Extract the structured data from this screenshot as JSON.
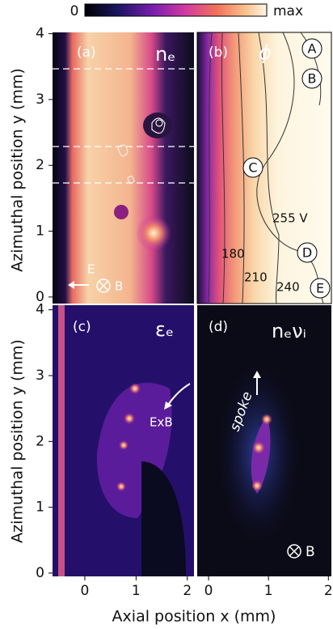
{
  "colorbar": {
    "min_label": "0",
    "max_label": "max"
  },
  "chart_data": [
    {
      "type": "heatmap",
      "label": "(a)",
      "title": "nₑ",
      "ylabel": "Azimuthal position y (mm)",
      "xlim": [
        -0.63,
        2.13
      ],
      "ylim": [
        -0.1,
        4.02
      ],
      "yticks": [
        0,
        1,
        2,
        3,
        4
      ],
      "annotations": [
        "E",
        "B"
      ]
    },
    {
      "type": "heatmap",
      "label": "(b)",
      "title": "ϕ",
      "xlim": [
        -0.19,
        2.05
      ],
      "ylim": [
        -0.1,
        4.02
      ],
      "annotations": [
        "A",
        "B",
        "C",
        "D",
        "E",
        "255 V",
        "180",
        "210",
        "240"
      ]
    },
    {
      "type": "heatmap",
      "label": "(c)",
      "title": "εₑ",
      "ylabel": "Azimuthal position y (mm)",
      "xlabel": "Axial position x (mm)",
      "xlim": [
        -0.63,
        2.13
      ],
      "ylim": [
        -0.05,
        4.07
      ],
      "xticks": [
        0,
        1,
        2
      ],
      "yticks": [
        0,
        1,
        2,
        3,
        4
      ],
      "annotations": [
        "ExB"
      ]
    },
    {
      "type": "heatmap",
      "label": "(d)",
      "title": "nₑνᵢ",
      "xlim": [
        -0.19,
        2.05
      ],
      "ylim": [
        -0.05,
        4.07
      ],
      "xticks": [
        0,
        1,
        2
      ],
      "annotations": [
        "spoke",
        "B"
      ]
    }
  ]
}
